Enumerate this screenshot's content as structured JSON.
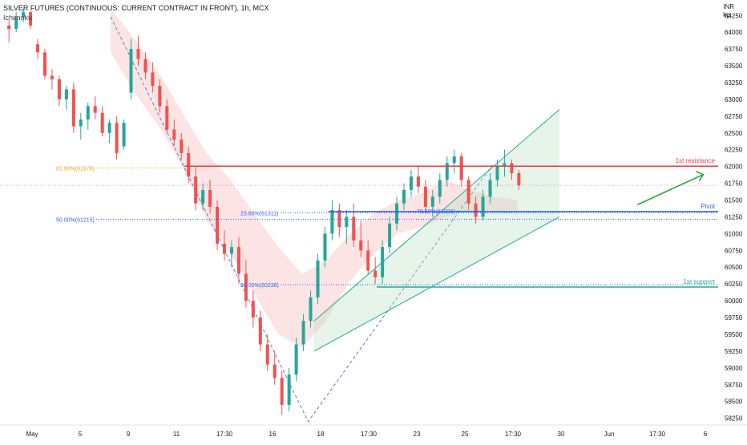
{
  "header": {
    "title": "SILVER FUTURES (CONTINUOUS: CURRENT CONTRACT IN FRONT), 1h, MCX",
    "indicator": "Ichimoku",
    "currency": "INR",
    "unit": "kg"
  },
  "chart_data": {
    "type": "candlestick",
    "y_axis": {
      "ticks": [
        58250,
        58500,
        58750,
        59000,
        59250,
        59500,
        59750,
        60000,
        60250,
        60500,
        60750,
        61000,
        61250,
        61500,
        61750,
        62000,
        62250,
        62500,
        62750,
        63000,
        63250,
        63500,
        63750,
        64000,
        64250
      ],
      "range": [
        58150,
        64480
      ],
      "position": "right"
    },
    "x_axis": {
      "ticks": [
        "May",
        "5",
        "9",
        "11",
        "17:30",
        "16",
        "18",
        "17:30",
        "23",
        "25",
        "17:30",
        "30",
        "Jun",
        "17:30",
        "6"
      ]
    },
    "levels": [
      {
        "name": "1st resistance",
        "value": 62005,
        "label": "62005",
        "color": "#f23645"
      },
      {
        "name": "Pivot",
        "value": 61328,
        "label": "61328",
        "color": "#2962ff"
      },
      {
        "name": "1st support",
        "value": 60205,
        "label": "60205",
        "color": "#22ab94"
      }
    ],
    "fib_labels": [
      {
        "text": "61.80%(61978)",
        "value": 61978,
        "color": "#f7a21b"
      },
      {
        "text": "50.00%(61215)",
        "value": 61215,
        "color": "#2962ff"
      },
      {
        "text": "23.60%(61311)",
        "value": 61311,
        "color": "#2962ff"
      },
      {
        "text": "50.00%(60238)",
        "value": 60238,
        "color": "#2962ff"
      },
      {
        "text": "78.60%(61338)",
        "value": 61338,
        "color": "#2962ff"
      }
    ],
    "swing_path": [
      {
        "t": 18,
        "p": 64230
      },
      {
        "t": 51,
        "p": 58200
      },
      {
        "t": 82,
        "p": 62050
      }
    ],
    "last_price": 61720,
    "current_price_line": 61720,
    "candles": [
      [
        64100,
        64180,
        63850,
        64050
      ],
      [
        64050,
        64300,
        64000,
        64220
      ],
      [
        64220,
        64350,
        64150,
        64300
      ],
      [
        64300,
        64320,
        64050,
        64100
      ],
      [
        63820,
        63900,
        63600,
        63700
      ],
      [
        63700,
        63750,
        63300,
        63350
      ],
      [
        63350,
        63450,
        63150,
        63300
      ],
      [
        63300,
        63350,
        62900,
        63000
      ],
      [
        63000,
        63200,
        62850,
        63150
      ],
      [
        63150,
        63250,
        62500,
        62600
      ],
      [
        62600,
        62800,
        62400,
        62700
      ],
      [
        62700,
        62950,
        62550,
        62900
      ],
      [
        62900,
        63050,
        62700,
        62800
      ],
      [
        62800,
        62900,
        62450,
        62500
      ],
      [
        62500,
        62700,
        62350,
        62650
      ],
      [
        62650,
        62750,
        62100,
        62200
      ],
      [
        62300,
        62700,
        62250,
        62650
      ],
      [
        63100,
        63900,
        63000,
        63750
      ],
      [
        63750,
        63950,
        63500,
        63600
      ],
      [
        63600,
        63700,
        63300,
        63400
      ],
      [
        63400,
        63550,
        63100,
        63200
      ],
      [
        63200,
        63300,
        62800,
        62900
      ],
      [
        62900,
        63000,
        62500,
        62550
      ],
      [
        62550,
        62700,
        62300,
        62400
      ],
      [
        62400,
        62500,
        62100,
        62200
      ],
      [
        62200,
        62300,
        61750,
        61850
      ],
      [
        61850,
        62000,
        61350,
        61450
      ],
      [
        61450,
        61750,
        61350,
        61650
      ],
      [
        61650,
        61800,
        61300,
        61400
      ],
      [
        61400,
        61500,
        60750,
        60850
      ],
      [
        60850,
        61050,
        60600,
        60700
      ],
      [
        60700,
        60900,
        60500,
        60800
      ],
      [
        60800,
        60950,
        60250,
        60400
      ],
      [
        60400,
        60600,
        59900,
        60000
      ],
      [
        60000,
        60150,
        59600,
        59750
      ],
      [
        59750,
        59850,
        59250,
        59350
      ],
      [
        59350,
        59500,
        58950,
        59050
      ],
      [
        59050,
        59250,
        58750,
        58850
      ],
      [
        58850,
        58950,
        58300,
        58450
      ],
      [
        58450,
        59000,
        58350,
        58900
      ],
      [
        58900,
        59450,
        58800,
        59350
      ],
      [
        59350,
        59800,
        59250,
        59700
      ],
      [
        59700,
        60150,
        59600,
        60050
      ],
      [
        60050,
        60700,
        59950,
        60600
      ],
      [
        60600,
        61100,
        60500,
        61000
      ],
      [
        61000,
        61500,
        60900,
        61350
      ],
      [
        61350,
        61450,
        60950,
        61100
      ],
      [
        61100,
        61350,
        60850,
        61250
      ],
      [
        61250,
        61450,
        60800,
        60900
      ],
      [
        60900,
        61200,
        60650,
        60750
      ],
      [
        60750,
        60900,
        60400,
        60450
      ],
      [
        60450,
        60650,
        60250,
        60350
      ],
      [
        60350,
        60900,
        60250,
        60800
      ],
      [
        60800,
        61250,
        60700,
        61150
      ],
      [
        61150,
        61550,
        61050,
        61450
      ],
      [
        61450,
        61750,
        61350,
        61650
      ],
      [
        61650,
        61950,
        61550,
        61850
      ],
      [
        61850,
        62000,
        61600,
        61700
      ],
      [
        61700,
        61800,
        61300,
        61400
      ],
      [
        61400,
        61650,
        61250,
        61550
      ],
      [
        61550,
        61900,
        61450,
        61800
      ],
      [
        61800,
        62150,
        61700,
        62050
      ],
      [
        62050,
        62250,
        61900,
        62150
      ],
      [
        62150,
        62200,
        61700,
        61800
      ],
      [
        61800,
        61850,
        61350,
        61450
      ],
      [
        61450,
        61550,
        61150,
        61250
      ],
      [
        61250,
        61650,
        61200,
        61550
      ],
      [
        61550,
        61900,
        61450,
        61800
      ],
      [
        61800,
        62100,
        61700,
        62000
      ],
      [
        62000,
        62250,
        61850,
        62050
      ],
      [
        62050,
        62100,
        61800,
        61900
      ],
      [
        61900,
        61950,
        61650,
        61720
      ]
    ],
    "cloud": [
      [
        18,
        64350,
        63700
      ],
      [
        22,
        63900,
        63100
      ],
      [
        26,
        63400,
        62600
      ],
      [
        30,
        62800,
        62000
      ],
      [
        34,
        62200,
        61200
      ],
      [
        38,
        61800,
        60700
      ],
      [
        42,
        61300,
        60100
      ],
      [
        46,
        60800,
        59500
      ],
      [
        50,
        60400,
        59300
      ],
      [
        54,
        60600,
        59700
      ],
      [
        58,
        61000,
        60300
      ],
      [
        62,
        61300,
        60700
      ],
      [
        66,
        61500,
        61000
      ],
      [
        70,
        61600,
        61100
      ],
      [
        74,
        61800,
        61250
      ],
      [
        78,
        61650,
        61350
      ],
      [
        82,
        61550,
        61300
      ],
      [
        86,
        61500,
        61300
      ]
    ]
  }
}
